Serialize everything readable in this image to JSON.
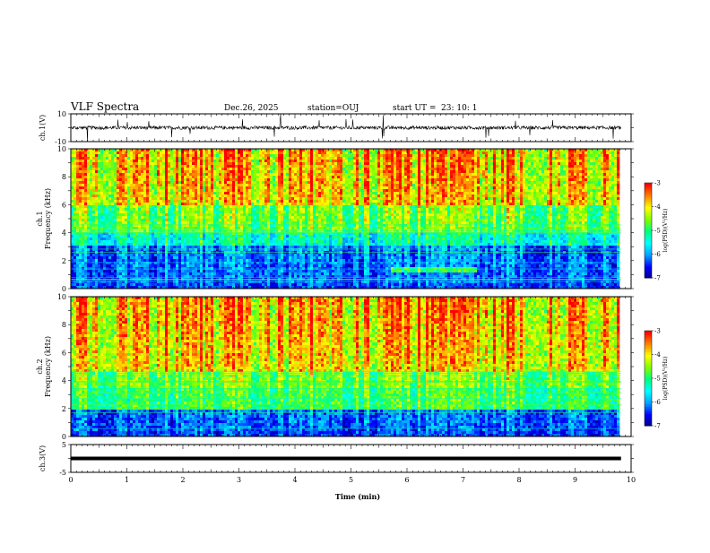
{
  "header": {
    "title": "VLF Spectra",
    "date": "Dec.26, 2025",
    "station": "station=OUJ",
    "start_ut": "start UT =",
    "start_time": "23: 10: 1"
  },
  "chart_data": [
    {
      "type": "line",
      "name": "ch1-waveform",
      "ylabel": "ch.1(V)",
      "ylim": [
        -10,
        10
      ],
      "yticks": [
        "10",
        "-10"
      ],
      "baseline": 0,
      "noise_amplitude": 2.5
    },
    {
      "type": "heatmap",
      "name": "ch1-spectrogram",
      "ylabel": "ch.1\nFrequency (kHz)",
      "ylabel_line1": "ch.1",
      "ylabel_line2": "Frequency (kHz)",
      "ylim": [
        0,
        10
      ],
      "yticks": [
        "0",
        "2",
        "4",
        "6",
        "8",
        "10"
      ],
      "colorbar": {
        "range": [
          -7,
          -3
        ],
        "ticks": [
          "-3",
          "-4",
          "-5",
          "-6",
          "-7"
        ],
        "label": "log(PSD)(V²/Hz)"
      }
    },
    {
      "type": "heatmap",
      "name": "ch2-spectrogram",
      "ylabel_line1": "ch.2",
      "ylabel_line2": "Frequency (kHz)",
      "ylim": [
        0,
        10
      ],
      "yticks": [
        "0",
        "2",
        "4",
        "6",
        "8",
        "10"
      ],
      "colorbar": {
        "range": [
          -7,
          -3
        ],
        "ticks": [
          "-3",
          "-4",
          "-5",
          "-6",
          "-7"
        ],
        "label": "log(PSD)(V²/Hz)"
      }
    },
    {
      "type": "line",
      "name": "ch3-waveform",
      "ylabel": "ch.3(V)",
      "ylim": [
        -5,
        5
      ],
      "yticks": [
        "5",
        "-5"
      ],
      "baseline": 0
    }
  ],
  "xaxis": {
    "label": "Time (min)",
    "range": [
      0,
      10
    ],
    "ticks": [
      "0",
      "1",
      "2",
      "3",
      "4",
      "5",
      "6",
      "7",
      "8",
      "9",
      "10"
    ],
    "data_end": 9.82
  },
  "colors": {
    "colormap": [
      "#000080",
      "#0000ff",
      "#00a0ff",
      "#00ffff",
      "#00ff80",
      "#80ff00",
      "#ffff00",
      "#ff8000",
      "#ff0000"
    ]
  }
}
